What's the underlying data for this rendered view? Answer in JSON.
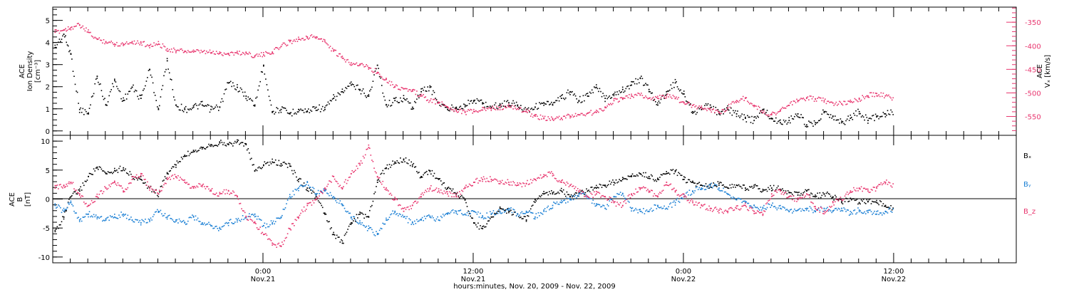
{
  "colors": {
    "black": "#000000",
    "blue": "#1a7fd4",
    "pink": "#e8356e",
    "background": "#ffffff"
  },
  "x_axis": {
    "ticks": [
      {
        "time": "0:00",
        "date": "Nov.21",
        "hours": 24
      },
      {
        "time": "12:00",
        "date": "Nov.21",
        "hours": 36
      },
      {
        "time": "0:00",
        "date": "Nov.22",
        "hours": 48
      },
      {
        "time": "12:00",
        "date": "Nov.22",
        "hours": 60
      }
    ],
    "label": "hours:minutes, Nov. 20, 2009 - Nov. 22, 2009"
  },
  "chart_data": [
    {
      "type": "scatter",
      "panel": "top",
      "ylabel": [
        "ACE",
        "Ion Density",
        "[cm⁻³]"
      ],
      "ylim": [
        -0.2,
        5.6
      ],
      "yticks": [
        0,
        1,
        2,
        3,
        4,
        5
      ],
      "y2label": [
        "ACE",
        "Vₓ [km/s]"
      ],
      "y2lim": [
        -590,
        -318
      ],
      "y2ticks": [
        -350,
        -400,
        -450,
        -500,
        -550
      ],
      "series": [
        {
          "color": "#000000",
          "x": [
            12.1,
            12.6,
            13.0,
            13.5,
            14.0,
            14.5,
            15.0,
            15.5,
            16.0,
            16.5,
            17.0,
            17.5,
            18.0,
            18.5,
            19.0,
            19.5,
            20.0,
            20.5,
            21.0,
            21.5,
            22.0,
            22.5,
            23.0,
            23.5,
            24.0,
            24.5,
            25.0,
            25.5,
            26.0,
            26.5,
            27.0,
            27.5,
            28.0,
            28.5,
            29.0,
            29.5,
            30.0,
            30.5,
            31.0,
            31.5,
            32.0,
            32.5,
            33.0,
            33.5,
            34.0,
            34.5,
            35.0,
            35.5,
            36.0,
            36.5,
            37.0,
            37.5,
            38.0,
            38.5,
            39.0,
            39.5,
            40.0,
            40.5,
            41.0,
            41.5,
            42.0,
            42.5,
            43.0,
            43.5,
            44.0,
            44.5,
            45.0,
            45.5,
            46.0,
            46.5,
            47.0,
            47.5,
            48.0,
            48.5,
            49.0,
            49.5,
            50.0,
            50.5,
            51.0,
            51.5,
            52.0,
            52.5,
            53.0,
            53.5,
            54.0,
            54.5,
            55.0,
            55.5,
            56.0,
            56.5,
            57.0,
            57.5,
            58.0,
            58.5,
            59.0,
            59.5,
            60.0
          ],
          "y": [
            3.8,
            4.4,
            3.5,
            1.0,
            0.8,
            2.5,
            1.2,
            2.3,
            1.4,
            2.0,
            1.5,
            2.8,
            1.0,
            3.2,
            1.2,
            1.0,
            1.1,
            1.2,
            1.0,
            1.1,
            2.2,
            2.0,
            1.6,
            1.2,
            3.0,
            0.9,
            1.0,
            0.8,
            1.0,
            0.9,
            1.1,
            1.0,
            1.5,
            1.8,
            2.1,
            1.9,
            1.6,
            3.0,
            1.2,
            1.4,
            1.5,
            1.1,
            1.8,
            2.0,
            1.3,
            1.0,
            1.1,
            1.2,
            1.4,
            1.3,
            1.1,
            1.2,
            1.3,
            1.2,
            1.0,
            1.1,
            1.3,
            1.2,
            1.5,
            1.8,
            1.4,
            1.6,
            2.0,
            1.5,
            1.7,
            1.9,
            2.1,
            2.4,
            1.9,
            1.2,
            1.8,
            2.2,
            1.7,
            0.9,
            1.0,
            1.2,
            0.8,
            1.0,
            0.8,
            0.6,
            0.5,
            1.0,
            0.6,
            0.4,
            0.5,
            0.8,
            0.3,
            0.4,
            0.9,
            0.7,
            0.4,
            0.6,
            0.9,
            0.5,
            0.7,
            0.8,
            0.9
          ]
        },
        {
          "axis": "right",
          "color": "#e8356e",
          "x": [
            12.1,
            12.6,
            13.0,
            13.5,
            14.0,
            14.5,
            15.0,
            15.5,
            16.0,
            16.5,
            17.0,
            17.5,
            18.0,
            18.5,
            19.0,
            19.5,
            20.0,
            20.5,
            21.0,
            21.5,
            22.0,
            22.5,
            23.0,
            23.5,
            24.0,
            24.5,
            25.0,
            25.5,
            26.0,
            26.5,
            27.0,
            27.5,
            28.0,
            28.5,
            29.0,
            29.5,
            30.0,
            30.5,
            31.0,
            31.5,
            32.0,
            32.5,
            33.0,
            33.5,
            34.0,
            34.5,
            35.0,
            35.5,
            36.0,
            36.5,
            37.0,
            37.5,
            38.0,
            38.5,
            39.0,
            39.5,
            40.0,
            40.5,
            41.0,
            41.5,
            42.0,
            42.5,
            43.0,
            43.5,
            44.0,
            44.5,
            45.0,
            45.5,
            46.0,
            46.5,
            47.0,
            47.5,
            48.0,
            48.5,
            49.0,
            49.5,
            50.0,
            50.5,
            51.0,
            51.5,
            52.0,
            52.5,
            53.0,
            53.5,
            54.0,
            54.5,
            55.0,
            55.5,
            56.0,
            56.5,
            57.0,
            57.5,
            58.0,
            58.5,
            59.0,
            59.5,
            60.0
          ],
          "y": [
            -370,
            -365,
            -360,
            -355,
            -370,
            -385,
            -390,
            -395,
            -395,
            -390,
            -393,
            -398,
            -395,
            -405,
            -410,
            -410,
            -412,
            -412,
            -413,
            -415,
            -415,
            -414,
            -414,
            -420,
            -418,
            -412,
            -400,
            -390,
            -385,
            -380,
            -380,
            -390,
            -410,
            -425,
            -435,
            -438,
            -445,
            -455,
            -470,
            -485,
            -490,
            -495,
            -505,
            -515,
            -520,
            -528,
            -535,
            -540,
            -538,
            -535,
            -532,
            -530,
            -528,
            -532,
            -538,
            -548,
            -552,
            -555,
            -552,
            -548,
            -545,
            -542,
            -540,
            -530,
            -515,
            -512,
            -505,
            -503,
            -510,
            -510,
            -505,
            -510,
            -520,
            -525,
            -530,
            -535,
            -540,
            -530,
            -515,
            -510,
            -525,
            -540,
            -545,
            -535,
            -525,
            -515,
            -510,
            -512,
            -515,
            -520,
            -522,
            -518,
            -512,
            -505,
            -500,
            -505,
            -510
          ]
        }
      ]
    },
    {
      "type": "scatter",
      "panel": "bottom",
      "ylabel": [
        "ACE",
        "B",
        "[nT]"
      ],
      "ylim": [
        -11,
        11
      ],
      "yticks": [
        -10,
        -5,
        0,
        5,
        10
      ],
      "series": [
        {
          "name": "Bₓ",
          "color": "#000000",
          "x": [
            12.1,
            12.6,
            13.0,
            13.5,
            14.0,
            14.5,
            15.0,
            15.5,
            16.0,
            16.5,
            17.0,
            17.5,
            18.0,
            18.5,
            19.0,
            19.5,
            20.0,
            20.5,
            21.0,
            21.5,
            22.0,
            22.5,
            23.0,
            23.5,
            24.0,
            24.5,
            25.0,
            25.5,
            26.0,
            26.5,
            27.0,
            27.5,
            28.0,
            28.5,
            29.0,
            29.5,
            30.0,
            30.5,
            31.0,
            31.5,
            32.0,
            32.5,
            33.0,
            33.5,
            34.0,
            34.5,
            35.0,
            35.5,
            36.0,
            36.5,
            37.0,
            37.5,
            38.0,
            38.5,
            39.0,
            39.5,
            40.0,
            40.5,
            41.0,
            41.5,
            42.0,
            42.5,
            43.0,
            43.5,
            44.0,
            44.5,
            45.0,
            45.5,
            46.0,
            46.5,
            47.0,
            47.5,
            48.0,
            48.5,
            49.0,
            49.5,
            50.0,
            50.5,
            51.0,
            51.5,
            52.0,
            52.5,
            53.0,
            53.5,
            54.0,
            54.5,
            55.0,
            55.5,
            56.0,
            56.5,
            57.0,
            57.5,
            58.0,
            58.5,
            59.0,
            59.5,
            60.0
          ],
          "y": [
            -5.5,
            -3.0,
            0.5,
            1.5,
            4.0,
            5.5,
            4.5,
            5.0,
            5.5,
            4.0,
            3.5,
            2.0,
            1.0,
            4.5,
            6.0,
            7.5,
            8.5,
            9.0,
            9.5,
            9.8,
            9.5,
            10.0,
            9.5,
            5.0,
            6.0,
            6.5,
            6.2,
            5.8,
            3.5,
            2.0,
            0.5,
            -2.5,
            -6.0,
            -7.5,
            -4.0,
            -2.5,
            -3.0,
            3.0,
            5.5,
            6.5,
            7.0,
            6.0,
            4.0,
            5.0,
            3.5,
            2.0,
            1.0,
            0.0,
            -4.0,
            -5.0,
            -3.0,
            -1.5,
            -2.0,
            -2.5,
            -3.5,
            0.0,
            1.0,
            1.2,
            1.5,
            0.5,
            1.0,
            1.5,
            2.0,
            2.5,
            3.0,
            3.5,
            4.0,
            4.5,
            4.0,
            3.5,
            4.5,
            5.0,
            3.5,
            3.0,
            2.5,
            2.2,
            2.8,
            2.0,
            2.5,
            2.0,
            2.2,
            1.5,
            2.0,
            1.8,
            1.2,
            0.8,
            1.5,
            0.5,
            1.0,
            0.5,
            -0.5,
            0.2,
            -0.5,
            -0.3,
            -0.5,
            -1.0,
            -1.5
          ]
        },
        {
          "name": "Bᵧ",
          "color": "#1a7fd4",
          "x": [
            12.1,
            12.6,
            13.0,
            13.5,
            14.0,
            14.5,
            15.0,
            15.5,
            16.0,
            16.5,
            17.0,
            17.5,
            18.0,
            18.5,
            19.0,
            19.5,
            20.0,
            20.5,
            21.0,
            21.5,
            22.0,
            22.5,
            23.0,
            23.5,
            24.0,
            24.5,
            25.0,
            25.5,
            26.0,
            26.5,
            27.0,
            27.5,
            28.0,
            28.5,
            29.0,
            29.5,
            30.0,
            30.5,
            31.0,
            31.5,
            32.0,
            32.5,
            33.0,
            33.5,
            34.0,
            34.5,
            35.0,
            35.5,
            36.0,
            36.5,
            37.0,
            37.5,
            38.0,
            38.5,
            39.0,
            39.5,
            40.0,
            40.5,
            41.0,
            41.5,
            42.0,
            42.5,
            43.0,
            43.5,
            44.0,
            44.5,
            45.0,
            45.5,
            46.0,
            46.5,
            47.0,
            47.5,
            48.0,
            48.5,
            49.0,
            49.5,
            50.0,
            50.5,
            51.0,
            51.5,
            52.0,
            52.5,
            53.0,
            53.5,
            54.0,
            54.5,
            55.0,
            55.5,
            56.0,
            56.5,
            57.0,
            57.5,
            58.0,
            58.5,
            59.0,
            59.5,
            60.0
          ],
          "y": [
            -1.0,
            -2.0,
            -0.5,
            -3.5,
            -2.5,
            -3.0,
            -3.5,
            -3.0,
            -2.5,
            -3.5,
            -4.0,
            -3.5,
            -2.0,
            -3.0,
            -3.5,
            -4.0,
            -3.0,
            -4.0,
            -4.5,
            -5.0,
            -4.0,
            -3.5,
            -3.0,
            -2.5,
            -4.5,
            -4.0,
            -3.0,
            0.5,
            2.0,
            3.0,
            1.0,
            1.5,
            0.5,
            -1.0,
            -3.0,
            -4.0,
            -5.0,
            -6.0,
            -3.5,
            -2.0,
            -3.0,
            -4.0,
            -3.5,
            -3.0,
            -3.5,
            -2.5,
            -2.0,
            -2.5,
            -2.0,
            -3.0,
            -2.5,
            -2.0,
            -1.5,
            -2.5,
            -2.0,
            -3.0,
            -2.0,
            -1.0,
            -0.5,
            0.0,
            1.0,
            0.5,
            -1.0,
            -1.5,
            0.5,
            1.0,
            -1.5,
            -2.0,
            -2.0,
            -1.0,
            -1.5,
            -0.5,
            0.5,
            1.5,
            2.0,
            2.5,
            2.0,
            1.0,
            0.0,
            -0.5,
            -1.0,
            -1.5,
            -1.0,
            -1.5,
            -2.0,
            -1.8,
            -1.5,
            -2.0,
            -1.5,
            -2.0,
            -1.5,
            -2.5,
            -1.8,
            -2.2,
            -2.5,
            -2.0,
            -1.8
          ]
        },
        {
          "name": "B_z",
          "color": "#e8356e",
          "x": [
            12.1,
            12.6,
            13.0,
            13.5,
            14.0,
            14.5,
            15.0,
            15.5,
            16.0,
            16.5,
            17.0,
            17.5,
            18.0,
            18.5,
            19.0,
            19.5,
            20.0,
            20.5,
            21.0,
            21.5,
            22.0,
            22.5,
            23.0,
            23.5,
            24.0,
            24.5,
            25.0,
            25.5,
            26.0,
            26.5,
            27.0,
            27.5,
            28.0,
            28.5,
            29.0,
            29.5,
            30.0,
            30.5,
            31.0,
            31.5,
            32.0,
            32.5,
            33.0,
            33.5,
            34.0,
            34.5,
            35.0,
            35.5,
            36.0,
            36.5,
            37.0,
            37.5,
            38.0,
            38.5,
            39.0,
            39.5,
            40.0,
            40.5,
            41.0,
            41.5,
            42.0,
            42.5,
            43.0,
            43.5,
            44.0,
            44.5,
            45.0,
            45.5,
            46.0,
            46.5,
            47.0,
            47.5,
            48.0,
            48.5,
            49.0,
            49.5,
            50.0,
            50.5,
            51.0,
            51.5,
            52.0,
            52.5,
            53.0,
            53.5,
            54.0,
            54.5,
            55.0,
            55.5,
            56.0,
            56.5,
            57.0,
            57.5,
            58.0,
            58.5,
            59.0,
            59.5,
            60.0
          ],
          "y": [
            2.0,
            2.5,
            3.0,
            1.0,
            -1.0,
            0.5,
            2.0,
            3.0,
            1.5,
            3.5,
            4.5,
            2.0,
            1.0,
            3.5,
            4.0,
            3.0,
            2.0,
            2.5,
            1.5,
            1.0,
            1.5,
            0.5,
            -3.0,
            -4.0,
            -6.0,
            -7.5,
            -8.0,
            -5.0,
            -3.0,
            -1.0,
            0.0,
            2.0,
            4.0,
            2.0,
            4.5,
            6.0,
            9.0,
            4.0,
            2.0,
            0.0,
            -2.0,
            -1.0,
            0.5,
            2.0,
            1.5,
            1.0,
            0.5,
            2.0,
            3.0,
            3.5,
            3.5,
            3.2,
            3.0,
            2.5,
            2.8,
            3.5,
            4.0,
            4.5,
            3.0,
            2.5,
            1.5,
            0.5,
            1.0,
            0.5,
            -0.5,
            -1.0,
            1.0,
            2.0,
            1.5,
            0.5,
            3.0,
            1.5,
            0.5,
            -0.5,
            -1.0,
            -1.5,
            -1.8,
            -2.0,
            -1.5,
            -1.0,
            -2.0,
            -2.5,
            1.0,
            1.5,
            0.5,
            0.0,
            1.0,
            -1.5,
            -2.0,
            -0.5,
            0.0,
            1.5,
            2.0,
            1.5,
            2.0,
            3.0,
            2.5
          ]
        }
      ]
    }
  ]
}
